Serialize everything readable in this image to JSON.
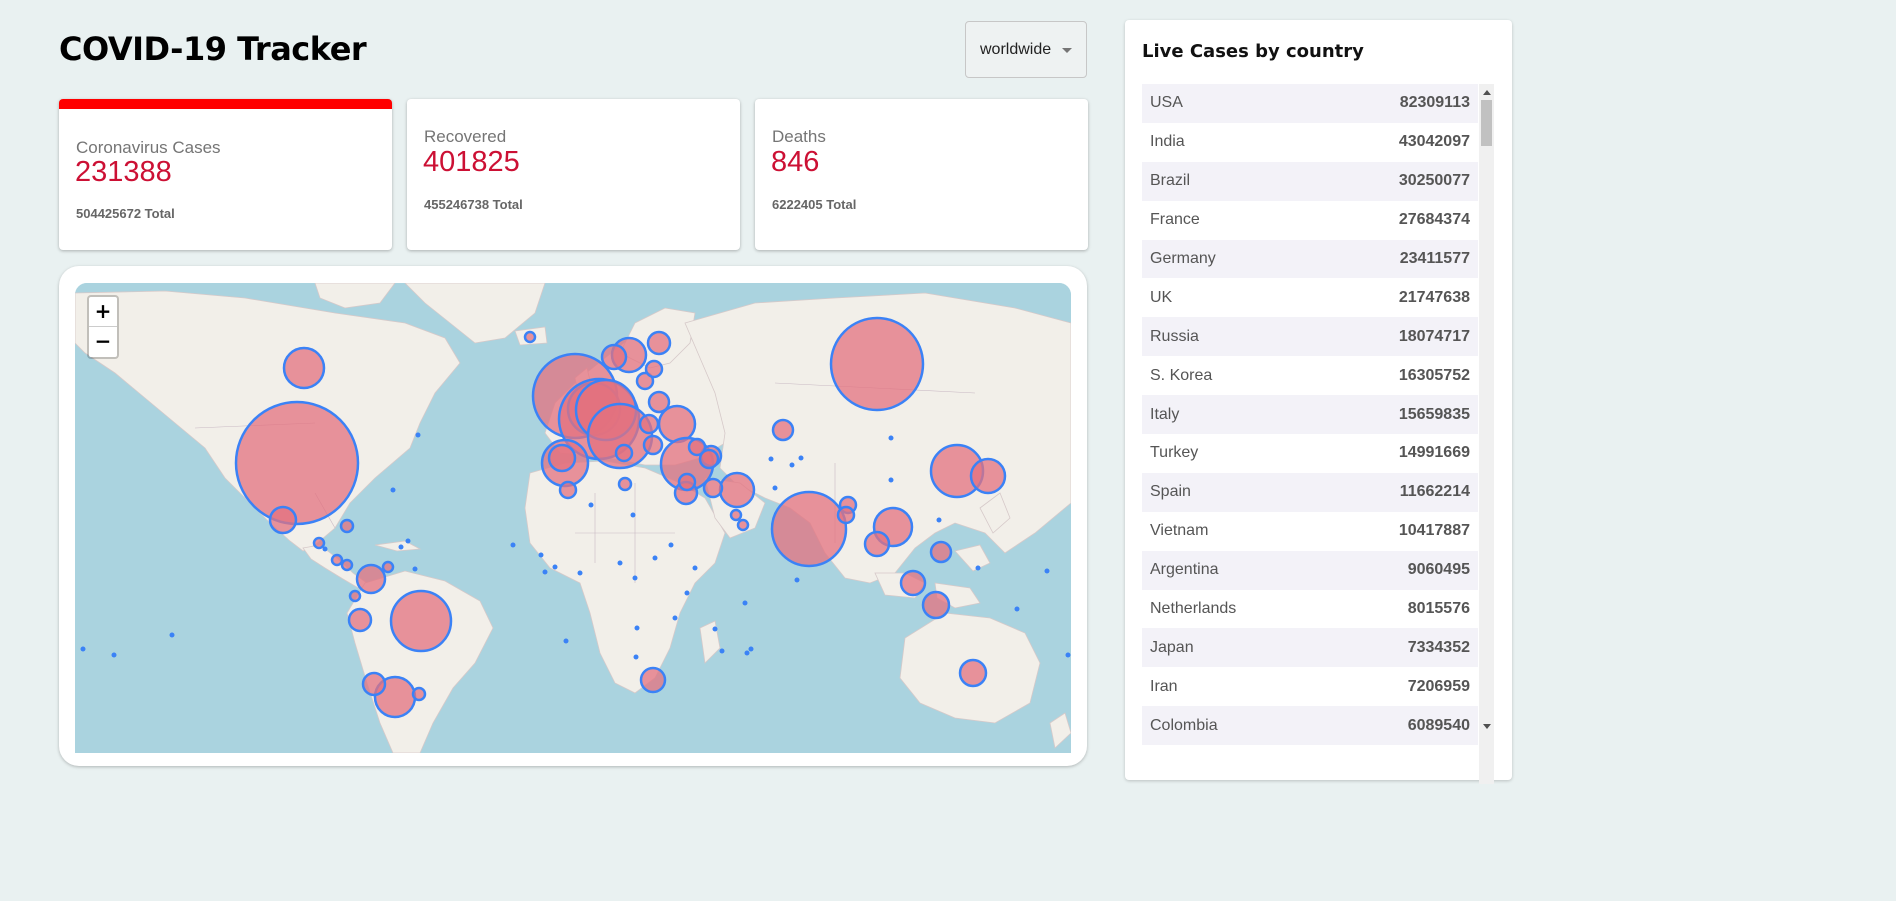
{
  "header": {
    "title": "COVID-19 Tracker"
  },
  "country_select": {
    "value": "worldwide"
  },
  "cards": [
    {
      "title": "Coronavirus Cases",
      "value": "231388",
      "total": "504425672 Total",
      "selected": true
    },
    {
      "title": "Recovered",
      "value": "401825",
      "total": "455246738 Total",
      "selected": false
    },
    {
      "title": "Deaths",
      "value": "846",
      "total": "6222405 Total",
      "selected": false
    }
  ],
  "map": {
    "zoom_in_label": "+",
    "zoom_out_label": "−",
    "colors": {
      "water": "#aad3df",
      "land": "#f2efe9",
      "circle_fill": "#e3717f",
      "circle_stroke": "#3b82f6"
    }
  },
  "sidebar": {
    "title": "Live Cases by country",
    "rows": [
      {
        "country": "USA",
        "cases": "82309113"
      },
      {
        "country": "India",
        "cases": "43042097"
      },
      {
        "country": "Brazil",
        "cases": "30250077"
      },
      {
        "country": "France",
        "cases": "27684374"
      },
      {
        "country": "Germany",
        "cases": "23411577"
      },
      {
        "country": "UK",
        "cases": "21747638"
      },
      {
        "country": "Russia",
        "cases": "18074717"
      },
      {
        "country": "S. Korea",
        "cases": "16305752"
      },
      {
        "country": "Italy",
        "cases": "15659835"
      },
      {
        "country": "Turkey",
        "cases": "14991669"
      },
      {
        "country": "Spain",
        "cases": "11662214"
      },
      {
        "country": "Vietnam",
        "cases": "10417887"
      },
      {
        "country": "Argentina",
        "cases": "9060495"
      },
      {
        "country": "Netherlands",
        "cases": "8015576"
      },
      {
        "country": "Japan",
        "cases": "7334352"
      },
      {
        "country": "Iran",
        "cases": "7206959"
      },
      {
        "country": "Colombia",
        "cases": "6089540"
      }
    ]
  },
  "theme": {
    "accent_red": "#cc1034",
    "selected_bar": "#ff0000",
    "background": "#e9f1f1"
  }
}
